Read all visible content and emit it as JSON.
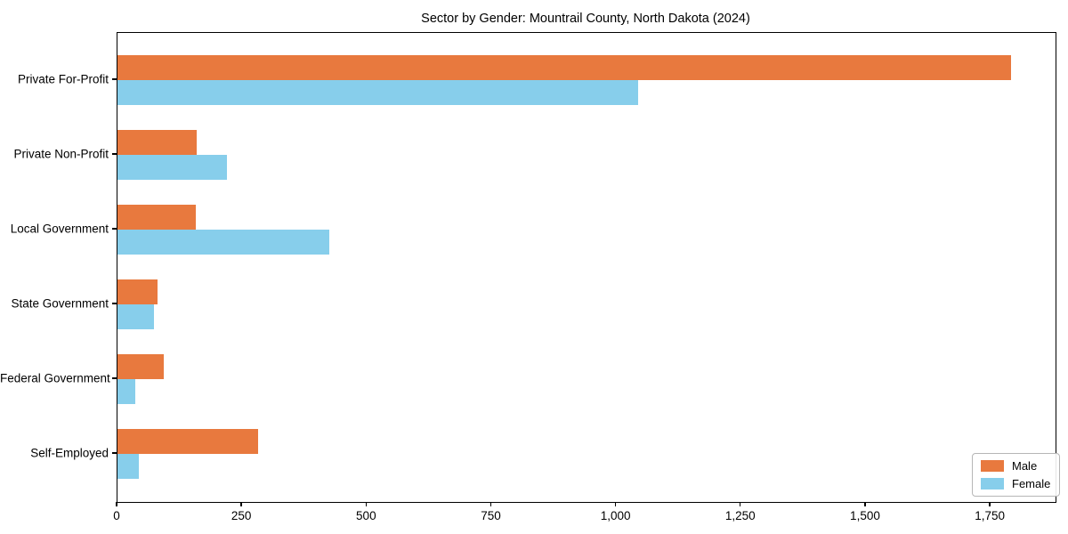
{
  "title": "Sector by Gender: Mountrail County, North Dakota (2024)",
  "colors": {
    "male": "#E8793E",
    "female": "#87CEEB",
    "axis": "#000000",
    "background": "#FFFFFF"
  },
  "legend": {
    "position": "lower right",
    "entries": [
      {
        "label": "Male",
        "color": "#E8793E"
      },
      {
        "label": "Female",
        "color": "#87CEEB"
      }
    ]
  },
  "chart_data": {
    "type": "bar",
    "orientation": "horizontal",
    "title": "Sector by Gender: Mountrail County, North Dakota (2024)",
    "xlabel": "",
    "ylabel": "",
    "categories": [
      "Private For-Profit",
      "Private Non-Profit",
      "Local Government",
      "State Government",
      "Federal Government",
      "Self-Employed"
    ],
    "series": [
      {
        "name": "Male",
        "color": "#E8793E",
        "values": [
          1790,
          159,
          157,
          80,
          92,
          282
        ]
      },
      {
        "name": "Female",
        "color": "#87CEEB",
        "values": [
          1044,
          220,
          424,
          74,
          35,
          42
        ]
      }
    ],
    "xlim": [
      0,
      1880
    ],
    "xticks": [
      0,
      250,
      500,
      750,
      1000,
      1250,
      1500,
      1750
    ],
    "xtick_labels": [
      "0",
      "250",
      "500",
      "750",
      "1,000",
      "1,250",
      "1,500",
      "1,750"
    ],
    "grid": false,
    "legend_position": "lower right"
  }
}
